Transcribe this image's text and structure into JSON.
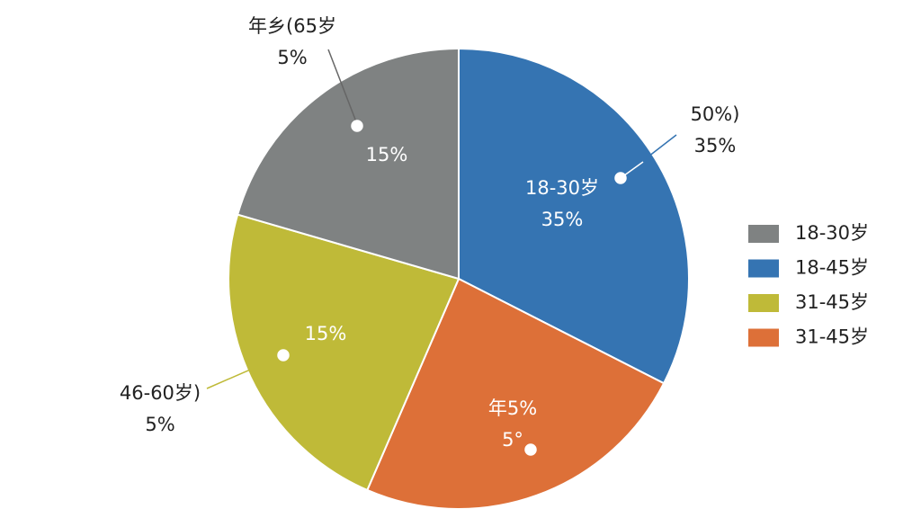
{
  "chart_data": {
    "type": "pie",
    "values": [
      32.5,
      24,
      23,
      20.5
    ],
    "colors": [
      "#3574b2",
      "#dd7038",
      "#bfba38",
      "#7f8282"
    ],
    "legend": [
      {
        "label": "18-30岁",
        "color": "#7f8282"
      },
      {
        "label": "18-45岁",
        "color": "#3574b2"
      },
      {
        "label": "31-45岁",
        "color": "#bfba38"
      },
      {
        "label": "31-45岁",
        "color": "#dd7038"
      }
    ],
    "annotations": [
      {
        "lines": [
          "18-30岁",
          "35%"
        ]
      },
      {
        "lines": [
          "年5%",
          "5°"
        ]
      },
      {
        "lines": [
          "15%"
        ]
      },
      {
        "lines": [
          "15%"
        ]
      },
      {
        "lines": [
          "50%)",
          "35%"
        ]
      },
      {
        "lines": [
          "46-60岁)",
          "5%"
        ]
      },
      {
        "lines": [
          "年乡(65岁",
          "5%"
        ]
      }
    ]
  }
}
